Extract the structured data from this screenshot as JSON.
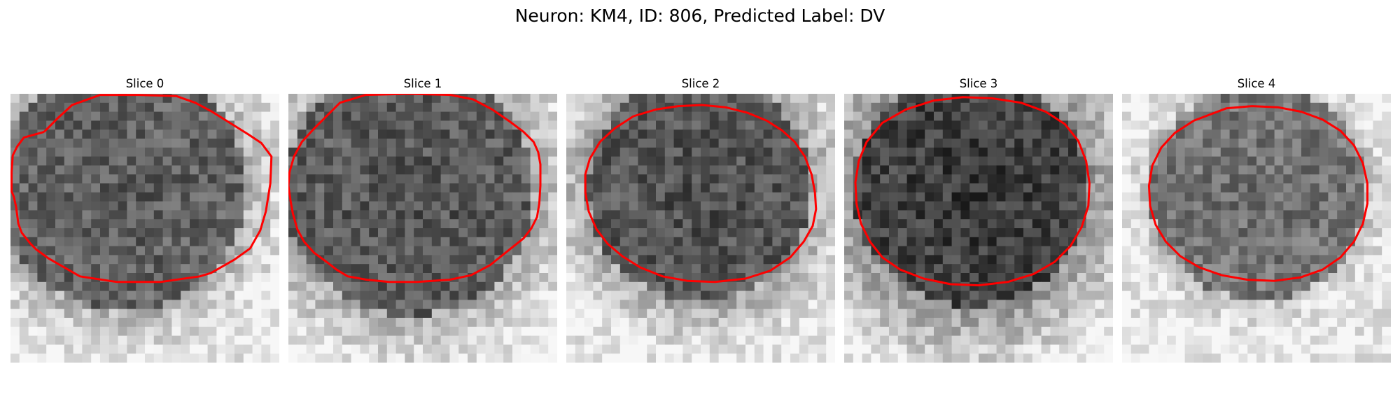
{
  "figure": {
    "title": "Neuron: KM4, ID: 806, Predicted Label: DV"
  },
  "panels": [
    {
      "title": "Slice 0",
      "grid": 30,
      "bias": 0.35,
      "contour": [
        [
          30,
          34
        ],
        [
          12,
          39
        ],
        [
          6,
          47
        ],
        [
          2,
          55
        ],
        [
          1,
          70
        ],
        [
          1,
          87
        ],
        [
          3,
          92
        ],
        [
          5,
          101
        ],
        [
          7,
          116
        ],
        [
          10,
          124
        ],
        [
          18,
          134
        ],
        [
          23,
          139
        ],
        [
          34,
          147
        ],
        [
          48,
          155
        ],
        [
          62,
          163
        ],
        [
          95,
          168
        ],
        [
          134,
          168
        ],
        [
          169,
          163
        ],
        [
          179,
          160
        ],
        [
          200,
          148
        ],
        [
          214,
          138
        ],
        [
          223,
          122
        ],
        [
          228,
          105
        ],
        [
          232,
          80
        ],
        [
          233,
          56
        ],
        [
          224,
          44
        ],
        [
          212,
          36
        ],
        [
          196,
          26
        ],
        [
          180,
          16
        ],
        [
          165,
          8
        ],
        [
          148,
          2
        ],
        [
          115,
          1
        ],
        [
          80,
          1
        ],
        [
          55,
          10
        ],
        [
          43,
          21
        ],
        [
          30,
          34
        ]
      ]
    },
    {
      "title": "Slice 1",
      "grid": 30,
      "bias": 0.32,
      "contour": [
        [
          32,
          22
        ],
        [
          22,
          32
        ],
        [
          12,
          43
        ],
        [
          5,
          56
        ],
        [
          1,
          70
        ],
        [
          0,
          82
        ],
        [
          2,
          96
        ],
        [
          4,
          107
        ],
        [
          8,
          121
        ],
        [
          14,
          132
        ],
        [
          23,
          142
        ],
        [
          34,
          150
        ],
        [
          43,
          157
        ],
        [
          53,
          163
        ],
        [
          70,
          166
        ],
        [
          90,
          168
        ],
        [
          115,
          168
        ],
        [
          144,
          166
        ],
        [
          163,
          162
        ],
        [
          180,
          153
        ],
        [
          195,
          141
        ],
        [
          210,
          129
        ],
        [
          217,
          120
        ],
        [
          222,
          110
        ],
        [
          224,
          98
        ],
        [
          225,
          82
        ],
        [
          225,
          63
        ],
        [
          223,
          52
        ],
        [
          219,
          43
        ],
        [
          210,
          34
        ],
        [
          198,
          25
        ],
        [
          182,
          14
        ],
        [
          165,
          5
        ],
        [
          145,
          1
        ],
        [
          107,
          0
        ],
        [
          69,
          1
        ],
        [
          46,
          8
        ],
        [
          32,
          22
        ]
      ]
    },
    {
      "title": "Slice 2",
      "grid": 30,
      "bias": 0.3,
      "contour": [
        [
          60,
          20
        ],
        [
          43,
          31
        ],
        [
          30,
          43
        ],
        [
          21,
          58
        ],
        [
          17,
          72
        ],
        [
          17,
          88
        ],
        [
          20,
          105
        ],
        [
          27,
          121
        ],
        [
          37,
          134
        ],
        [
          50,
          145
        ],
        [
          66,
          155
        ],
        [
          86,
          163
        ],
        [
          108,
          167
        ],
        [
          133,
          168
        ],
        [
          160,
          165
        ],
        [
          182,
          158
        ],
        [
          200,
          146
        ],
        [
          212,
          132
        ],
        [
          220,
          118
        ],
        [
          223,
          103
        ],
        [
          222,
          88
        ],
        [
          219,
          72
        ],
        [
          213,
          56
        ],
        [
          204,
          43
        ],
        [
          193,
          33
        ],
        [
          179,
          24
        ],
        [
          162,
          17
        ],
        [
          142,
          12
        ],
        [
          121,
          10
        ],
        [
          100,
          11
        ],
        [
          80,
          14
        ],
        [
          60,
          20
        ]
      ]
    },
    {
      "title": "Slice 3",
      "grid": 30,
      "bias": 0.22,
      "contour": [
        [
          80,
          6
        ],
        [
          55,
          14
        ],
        [
          34,
          26
        ],
        [
          20,
          43
        ],
        [
          13,
          60
        ],
        [
          10,
          79
        ],
        [
          11,
          98
        ],
        [
          15,
          116
        ],
        [
          23,
          132
        ],
        [
          34,
          146
        ],
        [
          50,
          157
        ],
        [
          71,
          165
        ],
        [
          95,
          170
        ],
        [
          120,
          171
        ],
        [
          146,
          168
        ],
        [
          169,
          161
        ],
        [
          188,
          150
        ],
        [
          202,
          136
        ],
        [
          212,
          119
        ],
        [
          218,
          100
        ],
        [
          219,
          80
        ],
        [
          216,
          60
        ],
        [
          209,
          42
        ],
        [
          197,
          27
        ],
        [
          180,
          16
        ],
        [
          158,
          8
        ],
        [
          132,
          4
        ],
        [
          106,
          3
        ],
        [
          80,
          6
        ]
      ]
    },
    {
      "title": "Slice 4",
      "grid": 30,
      "bias": 0.42,
      "contour": [
        [
          64,
          24
        ],
        [
          47,
          35
        ],
        [
          35,
          48
        ],
        [
          27,
          64
        ],
        [
          24,
          82
        ],
        [
          25,
          100
        ],
        [
          30,
          117
        ],
        [
          39,
          132
        ],
        [
          52,
          145
        ],
        [
          69,
          155
        ],
        [
          89,
          162
        ],
        [
          112,
          166
        ],
        [
          136,
          167
        ],
        [
          159,
          164
        ],
        [
          179,
          157
        ],
        [
          195,
          146
        ],
        [
          207,
          132
        ],
        [
          215,
          116
        ],
        [
          219,
          98
        ],
        [
          219,
          80
        ],
        [
          215,
          62
        ],
        [
          207,
          46
        ],
        [
          195,
          33
        ],
        [
          179,
          23
        ],
        [
          160,
          16
        ],
        [
          139,
          12
        ],
        [
          116,
          11
        ],
        [
          93,
          13
        ],
        [
          64,
          24
        ]
      ]
    }
  ],
  "colors": {
    "contour": "#ff0000",
    "text": "#000000"
  }
}
